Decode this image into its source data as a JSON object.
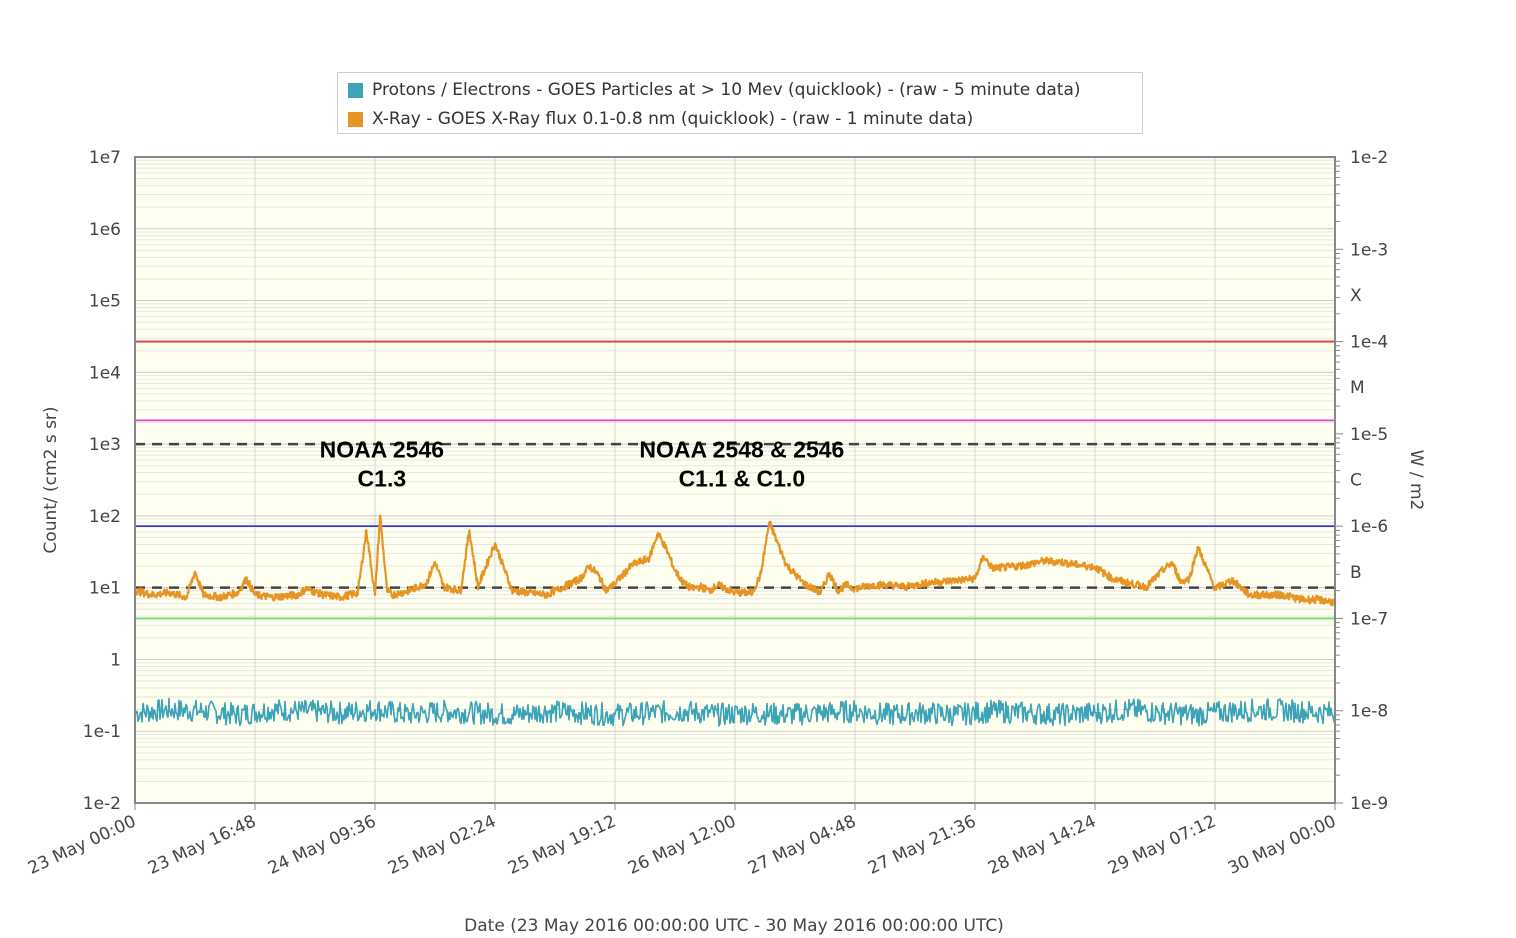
{
  "chart_data": {
    "type": "line",
    "title": "",
    "xlabel": "Date (23 May 2016 00:00:00 UTC - 30 May 2016 00:00:00 UTC)",
    "ylabel": "Count/ (cm2 s sr)",
    "y2label": "W / m2",
    "x_tick_labels": [
      "23 May 00:00",
      "23 May 16:48",
      "24 May 09:36",
      "25 May 02:24",
      "25 May 19:12",
      "26 May 12:00",
      "27 May 04:48",
      "27 May 21:36",
      "28 May 14:24",
      "29 May 07:12",
      "30 May 00:00"
    ],
    "y_tick_labels": [
      "1e7",
      "1e6",
      "1e5",
      "1e4",
      "1e3",
      "1e2",
      "1e1",
      "1",
      "1e-1",
      "1e-2"
    ],
    "y2_tick_labels": [
      "1e-2",
      "1e-3",
      "1e-4",
      "1e-5",
      "1e-6",
      "1e-7",
      "1e-8",
      "1e-9"
    ],
    "flare_class_labels": [
      {
        "label": "X",
        "value": 0.00032
      },
      {
        "label": "M",
        "value": 3.2e-05
      },
      {
        "label": "C",
        "value": 3.2e-06
      },
      {
        "label": "B",
        "value": 3.2e-07
      }
    ],
    "xlim_days": [
      0,
      7
    ],
    "ylim_log": [
      -2,
      7
    ],
    "y2lim_log": [
      -9,
      -2
    ],
    "y_scale": "log",
    "grid": true,
    "legend_position": "top-center",
    "threshold_lines": [
      {
        "axis": "right",
        "value": 0.0001,
        "color": "#e33b3b",
        "style": "solid"
      },
      {
        "axis": "right",
        "value": 1.4e-05,
        "color": "#e040e0",
        "style": "solid"
      },
      {
        "axis": "right",
        "value": 1e-06,
        "color": "#3b3bd6",
        "style": "solid"
      },
      {
        "axis": "right",
        "value": 1e-07,
        "color": "#6be06b",
        "style": "solid"
      },
      {
        "axis": "left",
        "value": 1000,
        "color": "#444444",
        "style": "dashed"
      },
      {
        "axis": "left",
        "value": 10,
        "color": "#444444",
        "style": "dashed"
      }
    ],
    "annotations": [
      {
        "lines": [
          "NOAA 2546",
          "C1.3"
        ],
        "x_day": 1.44,
        "y_value": 650
      },
      {
        "lines": [
          "NOAA 2548 & 2546",
          "C1.1 & C1.0"
        ],
        "x_day": 3.54,
        "y_value": 650
      }
    ],
    "series": [
      {
        "name": "Protons / Electrons - GOES Particles at > 10 Mev (quicklook) -  (raw - 5 minute data)",
        "color": "#3ca3b8",
        "axis": "left",
        "x_days": [
          0,
          0.2,
          0.4,
          0.6,
          0.8,
          1,
          1.2,
          1.4,
          1.6,
          1.8,
          2,
          2.2,
          2.4,
          2.6,
          2.8,
          3,
          3.2,
          3.4,
          3.6,
          3.8,
          4,
          4.2,
          4.4,
          4.6,
          4.8,
          5,
          5.2,
          5.4,
          5.6,
          5.8,
          6,
          6.2,
          6.4,
          6.6,
          6.8,
          7
        ],
        "values": [
          0.18,
          0.2,
          0.19,
          0.17,
          0.2,
          0.19,
          0.18,
          0.2,
          0.17,
          0.19,
          0.18,
          0.17,
          0.19,
          0.18,
          0.17,
          0.18,
          0.19,
          0.17,
          0.18,
          0.17,
          0.18,
          0.19,
          0.17,
          0.18,
          0.17,
          0.19,
          0.18,
          0.17,
          0.18,
          0.2,
          0.18,
          0.17,
          0.19,
          0.2,
          0.19,
          0.18
        ]
      },
      {
        "name": "X-Ray - GOES X-Ray flux 0.1-0.8 nm (quicklook) -  (raw - 1 minute data)",
        "color": "#e69524",
        "axis": "right",
        "x_days": [
          0,
          0.1,
          0.2,
          0.3,
          0.35,
          0.4,
          0.5,
          0.6,
          0.65,
          0.7,
          0.8,
          0.95,
          1,
          1.1,
          1.2,
          1.3,
          1.35,
          1.4,
          1.43,
          1.47,
          1.5,
          1.6,
          1.7,
          1.75,
          1.8,
          1.9,
          1.95,
          2,
          2.1,
          2.2,
          2.3,
          2.4,
          2.5,
          2.6,
          2.65,
          2.7,
          2.75,
          2.8,
          2.9,
          3,
          3.05,
          3.1,
          3.15,
          3.2,
          3.25,
          3.3,
          3.35,
          3.4,
          3.5,
          3.6,
          3.65,
          3.7,
          3.8,
          3.9,
          4,
          4.05,
          4.1,
          4.15,
          4.2,
          4.3,
          4.4,
          4.5,
          4.6,
          4.7,
          4.8,
          4.9,
          4.95,
          5,
          5.1,
          5.2,
          5.3,
          5.4,
          5.5,
          5.6,
          5.7,
          5.8,
          5.9,
          6,
          6.05,
          6.1,
          6.15,
          6.2,
          6.3,
          6.4,
          6.5,
          6.6,
          6.7,
          6.8,
          6.9,
          7
        ],
        "values": [
          2e-07,
          1.8e-07,
          1.9e-07,
          1.7e-07,
          3.2e-07,
          1.8e-07,
          1.7e-07,
          1.9e-07,
          2.7e-07,
          1.8e-07,
          1.7e-07,
          1.8e-07,
          2.1e-07,
          1.8e-07,
          1.7e-07,
          1.9e-07,
          9e-07,
          1.8e-07,
          1.3e-06,
          2e-07,
          1.8e-07,
          2e-07,
          2.4e-07,
          4.1e-07,
          2.2e-07,
          2e-07,
          9e-07,
          2.2e-07,
          6.5e-07,
          2e-07,
          1.9e-07,
          1.8e-07,
          2.2e-07,
          2.7e-07,
          3.7e-07,
          3e-07,
          2e-07,
          2.4e-07,
          3.8e-07,
          4.5e-07,
          8.4e-07,
          5.6e-07,
          3.3e-07,
          2.4e-07,
          2.1e-07,
          2.2e-07,
          2e-07,
          2.3e-07,
          1.9e-07,
          1.9e-07,
          3e-07,
          1.1e-06,
          3.8e-07,
          2.4e-07,
          1.9e-07,
          3.1e-07,
          2e-07,
          2.3e-07,
          2.1e-07,
          2.3e-07,
          2.3e-07,
          2.2e-07,
          2.4e-07,
          2.5e-07,
          2.6e-07,
          2.7e-07,
          4.7e-07,
          3.5e-07,
          3.6e-07,
          3.8e-07,
          4.2e-07,
          4.1e-07,
          3.8e-07,
          3.6e-07,
          2.7e-07,
          2.4e-07,
          2.2e-07,
          3.4e-07,
          4e-07,
          2.5e-07,
          2.7e-07,
          5.9e-07,
          2.1e-07,
          2.6e-07,
          1.8e-07,
          1.8e-07,
          1.8e-07,
          1.6e-07,
          1.6e-07,
          1.5e-07
        ]
      }
    ]
  }
}
